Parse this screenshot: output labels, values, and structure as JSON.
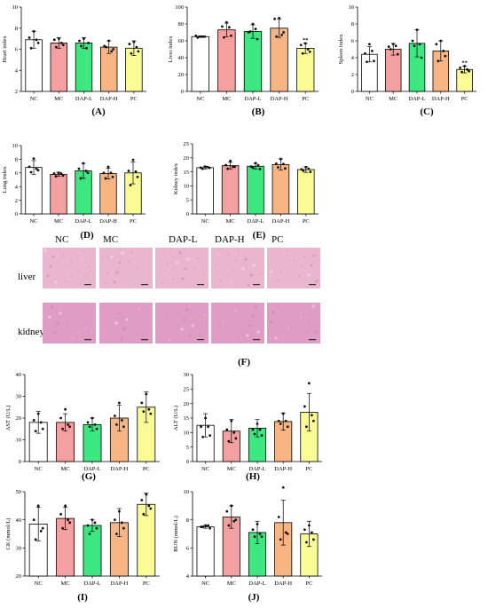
{
  "colors": {
    "NC": "#ffffff",
    "MC": "#f4a0a0",
    "DAP-L": "#3ee880",
    "DAP-H": "#f7b583",
    "PC": "#fbfb96",
    "axis": "#000000",
    "tissue_liver": "#e9b6cd",
    "tissue_kidney": "#df9cc4"
  },
  "groups": [
    "NC",
    "MC",
    "DAP-L",
    "DAP-H",
    "PC"
  ],
  "histology": {
    "panel": "(F)",
    "column_headers": [
      "NC",
      "MC",
      "DAP-L",
      "DAP-H",
      "PC"
    ],
    "rows": [
      "liver",
      "kidney"
    ]
  },
  "chart_data": [
    {
      "type": "bar",
      "panel": "(A)",
      "ylabel": "Heart index",
      "ylim": [
        2,
        10
      ],
      "yticks": [
        2,
        4,
        6,
        8,
        10
      ],
      "categories": [
        "NC",
        "MC",
        "DAP-L",
        "DAP-H",
        "PC"
      ],
      "values": [
        6.9,
        6.6,
        6.6,
        6.2,
        6.1
      ],
      "errors": [
        0.8,
        0.5,
        0.5,
        0.6,
        0.7
      ],
      "points": [
        [
          7.7,
          7.1,
          6.6,
          6.1,
          6.9
        ],
        [
          7.0,
          6.9,
          6.4,
          6.2,
          6.6
        ],
        [
          7.0,
          6.8,
          6.6,
          6.3,
          6.1
        ],
        [
          6.8,
          6.3,
          6.0,
          6.2,
          5.8
        ],
        [
          6.7,
          6.5,
          5.8,
          5.6,
          6.2
        ]
      ],
      "sig": []
    },
    {
      "type": "bar",
      "panel": "(B)",
      "ylabel": "Liver index",
      "ylim": [
        0,
        100
      ],
      "yticks": [
        0,
        20,
        40,
        60,
        80,
        100
      ],
      "categories": [
        "NC",
        "MC",
        "DAP-L",
        "DAP-H",
        "PC"
      ],
      "values": [
        65,
        73,
        71,
        75,
        51
      ],
      "errors": [
        1,
        8,
        8,
        11,
        6
      ],
      "points": [
        [
          65,
          66,
          65,
          64,
          65
        ],
        [
          82,
          77,
          66,
          64,
          76
        ],
        [
          80,
          70,
          62,
          71,
          74
        ],
        [
          87,
          86,
          70,
          65,
          67
        ],
        [
          57,
          55,
          47,
          45,
          50
        ]
      ],
      "sig": [
        "",
        "",
        "",
        "",
        "**"
      ]
    },
    {
      "type": "bar",
      "panel": "(C)",
      "ylabel": "Spleen index",
      "ylim": [
        0,
        10
      ],
      "yticks": [
        0,
        2,
        4,
        6,
        8,
        10
      ],
      "categories": [
        "NC",
        "MC",
        "DAP-L",
        "DAP-H",
        "PC"
      ],
      "values": [
        4.4,
        5.0,
        5.7,
        4.8,
        2.6
      ],
      "errors": [
        0.9,
        0.7,
        1.6,
        1.2,
        0.4
      ],
      "points": [
        [
          5.6,
          4.5,
          3.6,
          3.5,
          4.8
        ],
        [
          5.6,
          5.3,
          4.4,
          5.0,
          5.4
        ],
        [
          7.3,
          6.0,
          4.0,
          5.4,
          5.6
        ],
        [
          6.0,
          5.6,
          4.2,
          3.6,
          4.8
        ],
        [
          3.0,
          2.8,
          2.4,
          2.3,
          2.6
        ]
      ],
      "sig": [
        "",
        "",
        "",
        "",
        "**"
      ]
    },
    {
      "type": "bar",
      "panel": "(D)",
      "ylabel": "Lung index",
      "ylim": [
        0,
        10
      ],
      "yticks": [
        0,
        2,
        4,
        6,
        8,
        10
      ],
      "categories": [
        "NC",
        "MC",
        "DAP-L",
        "DAP-H",
        "PC"
      ],
      "values": [
        6.8,
        5.8,
        6.3,
        5.9,
        6.0
      ],
      "errors": [
        1.0,
        0.3,
        1.1,
        0.8,
        1.6
      ],
      "points": [
        [
          8.1,
          6.9,
          6.4,
          6.1,
          6.6
        ],
        [
          6.0,
          5.9,
          5.6,
          5.5,
          5.9
        ],
        [
          7.4,
          6.6,
          6.0,
          5.2,
          6.3
        ],
        [
          6.9,
          6.0,
          5.4,
          5.2,
          6.0
        ],
        [
          7.9,
          6.3,
          5.4,
          4.2,
          6.2
        ]
      ],
      "sig": []
    },
    {
      "type": "bar",
      "panel": "(E)",
      "ylabel": "Kidney index",
      "ylim": [
        0,
        25
      ],
      "yticks": [
        0,
        5,
        10,
        15,
        20,
        25
      ],
      "categories": [
        "NC",
        "MC",
        "DAP-L",
        "DAP-H",
        "PC"
      ],
      "values": [
        16.5,
        17.2,
        17.0,
        17.6,
        15.8
      ],
      "errors": [
        0.5,
        1.2,
        1.0,
        2.0,
        1.0
      ],
      "points": [
        [
          16.9,
          16.5,
          16.4,
          16.1,
          16.7
        ],
        [
          18.9,
          17.4,
          16.8,
          16.1,
          16.8
        ],
        [
          18.1,
          16.9,
          16.0,
          16.5,
          17.3
        ],
        [
          19.6,
          17.9,
          16.2,
          16.6,
          17.8
        ],
        [
          16.7,
          15.9,
          15.0,
          15.4,
          16.1
        ]
      ],
      "sig": []
    },
    {
      "type": "bar",
      "panel": "(G)",
      "ylabel": "AST (U/L)",
      "ylim": [
        0,
        40
      ],
      "yticks": [
        0,
        10,
        20,
        30,
        40
      ],
      "categories": [
        "NC",
        "MC",
        "DAP-L",
        "DAP-H",
        "PC"
      ],
      "values": [
        18,
        18,
        17,
        20,
        25
      ],
      "errors": [
        5,
        4,
        3,
        6,
        7
      ],
      "points": [
        [
          22,
          19,
          15,
          14,
          18
        ],
        [
          24,
          20,
          16,
          15,
          17
        ],
        [
          20,
          18,
          15,
          16,
          17
        ],
        [
          27,
          21,
          16,
          17,
          19
        ],
        [
          31,
          27,
          22,
          23,
          24
        ]
      ],
      "sig": []
    },
    {
      "type": "bar",
      "panel": "(H)",
      "ylabel": "ALT (U/L)",
      "ylim": [
        0,
        30
      ],
      "yticks": [
        0,
        5,
        10,
        15,
        20,
        25,
        30
      ],
      "categories": [
        "NC",
        "MC",
        "DAP-L",
        "DAP-H",
        "PC"
      ],
      "values": [
        12.5,
        10.5,
        11.5,
        13.8,
        17.0
      ],
      "errors": [
        4,
        4,
        3,
        3,
        6.5
      ],
      "points": [
        [
          15,
          12,
          9,
          8.5,
          12
        ],
        [
          14,
          11,
          8,
          7,
          10
        ],
        [
          13,
          11,
          9,
          9.5,
          11
        ],
        [
          16.5,
          14,
          12,
          13,
          14
        ],
        [
          27,
          19,
          14,
          12,
          16
        ]
      ],
      "sig": []
    },
    {
      "type": "bar",
      "panel": "(I)",
      "ylabel": "CK (mmol/L)",
      "ylim": [
        20,
        50
      ],
      "yticks": [
        20,
        30,
        40,
        50
      ],
      "categories": [
        "NC",
        "MC",
        "DAP-L",
        "DAP-H",
        "PC"
      ],
      "values": [
        38.5,
        40.5,
        38.0,
        39.0,
        45.5
      ],
      "errors": [
        6,
        4,
        2,
        5,
        4
      ],
      "points": [
        [
          45,
          40,
          37,
          33,
          36
        ],
        [
          45,
          42,
          39,
          37,
          40
        ],
        [
          40,
          38,
          37,
          35,
          39
        ],
        [
          43,
          40,
          37,
          35,
          39
        ],
        [
          49,
          47,
          44,
          42,
          45
        ]
      ],
      "sig": []
    },
    {
      "type": "bar",
      "panel": "(J)",
      "ylabel": "BUN (mmol/L)",
      "ylim": [
        4,
        10
      ],
      "yticks": [
        4,
        6,
        8,
        10
      ],
      "categories": [
        "NC",
        "MC",
        "DAP-L",
        "DAP-H",
        "PC"
      ],
      "values": [
        7.5,
        8.2,
        7.1,
        7.8,
        7.0
      ],
      "errors": [
        0.1,
        0.8,
        0.8,
        1.6,
        0.9
      ],
      "points": [
        [
          7.6,
          7.5,
          7.4,
          7.5,
          7.6
        ],
        [
          9.0,
          8.6,
          8.0,
          7.6,
          7.9
        ],
        [
          7.7,
          7.3,
          6.8,
          6.8,
          7.0
        ],
        [
          10.3,
          8.2,
          7.0,
          6.6,
          7.1
        ],
        [
          7.6,
          7.3,
          6.6,
          6.4,
          7.1
        ]
      ],
      "sig": []
    }
  ]
}
